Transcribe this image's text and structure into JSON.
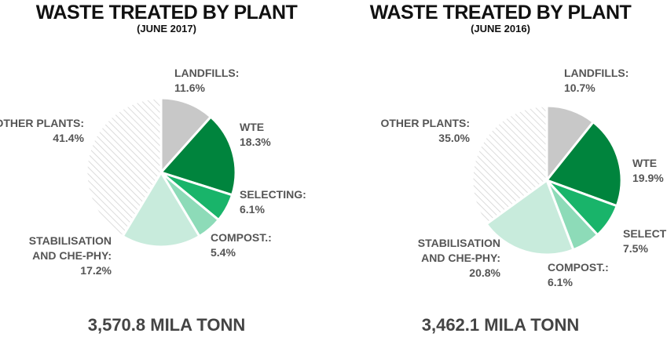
{
  "colors": {
    "landfills": "#c8c8c8",
    "wte": "#00843d",
    "selecting": "#19b46a",
    "compost": "#8ddbb8",
    "stabilisation": "#c8ebdc",
    "other_plants": "hatched-light-grey",
    "label_text": "#555555",
    "title_text": "#111111"
  },
  "chart_data": [
    {
      "type": "pie",
      "title": "WASTE TREATED BY PLANT",
      "subtitle": "(JUNE 2017)",
      "total": "3,570.8 MILA TONN",
      "slices": [
        {
          "key": "landfills",
          "label": [
            "LANDFILLS:",
            "11.6%"
          ],
          "value": 11.6
        },
        {
          "key": "wte",
          "label": [
            "WTE",
            "18.3%"
          ],
          "value": 18.3
        },
        {
          "key": "selecting",
          "label": [
            "SELECTING:",
            "6.1%"
          ],
          "value": 6.1
        },
        {
          "key": "compost",
          "label": [
            "COMPOST.:",
            "5.4%"
          ],
          "value": 5.4
        },
        {
          "key": "stabilisation",
          "label": [
            "STABILISATION",
            "AND CHE-PHY:",
            "17.2%"
          ],
          "value": 17.2
        },
        {
          "key": "other_plants",
          "label": [
            "OTHER PLANTS:",
            "41.4%"
          ],
          "value": 41.4
        }
      ]
    },
    {
      "type": "pie",
      "title": "WASTE TREATED BY PLANT",
      "subtitle": "(JUNE 2016)",
      "total": "3,462.1 MILA TONN",
      "slices": [
        {
          "key": "landfills",
          "label": [
            "LANDFILLS:",
            "10.7%"
          ],
          "value": 10.7
        },
        {
          "key": "wte",
          "label": [
            "WTE",
            "19.9%"
          ],
          "value": 19.9
        },
        {
          "key": "selecting",
          "label": [
            "SELECTING:",
            "7.5%"
          ],
          "value": 7.5
        },
        {
          "key": "compost",
          "label": [
            "COMPOST.:",
            "6.1%"
          ],
          "value": 6.1
        },
        {
          "key": "stabilisation",
          "label": [
            "STABILISATION",
            "AND CHE-PHY:",
            "20.8%"
          ],
          "value": 20.8
        },
        {
          "key": "other_plants",
          "label": [
            "OTHER PLANTS:",
            "35.0%"
          ],
          "value": 35.0
        }
      ]
    }
  ]
}
